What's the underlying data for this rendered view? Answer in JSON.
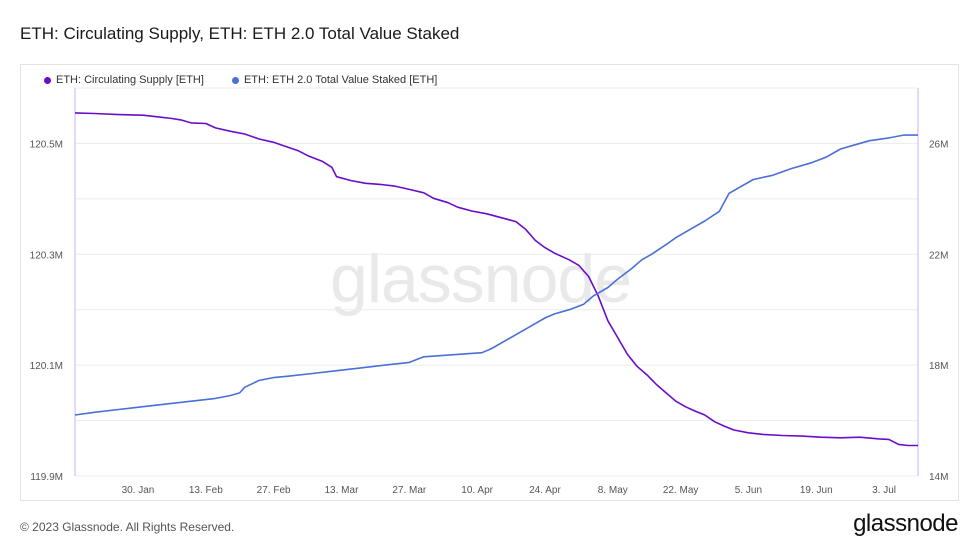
{
  "title": "ETH: Circulating Supply, ETH: ETH 2.0 Total Value Staked",
  "watermark": "glassnode",
  "footer": "© 2023 Glassnode. All Rights Reserved.",
  "brand": "glassnode",
  "colors": {
    "supply": "#6a0dc9",
    "staked": "#4a6fd6",
    "grid": "#ececec"
  },
  "chart_data": {
    "type": "line",
    "legend": [
      {
        "name": "ETH: Circulating Supply [ETH]",
        "color": "#6a0dc9"
      },
      {
        "name": "ETH: ETH 2.0 Total Value Staked [ETH]",
        "color": "#4a6fd6"
      }
    ],
    "xlabels": [
      "30. Jan",
      "13. Feb",
      "27. Feb",
      "13. Mar",
      "27. Mar",
      "10. Apr",
      "24. Apr",
      "8. May",
      "22. May",
      "5. Jun",
      "19. Jun",
      "3. Jul"
    ],
    "x_tick_days": [
      29,
      43,
      57,
      71,
      85,
      99,
      113,
      127,
      141,
      155,
      169,
      183
    ],
    "x_range_days": [
      16,
      190
    ],
    "left_axis": {
      "range": [
        119.9,
        120.6
      ],
      "ticks": [
        119.9,
        120.1,
        120.3,
        120.5
      ],
      "labels": [
        "119.9M",
        "120.1M",
        "120.3M",
        "120.5M"
      ]
    },
    "right_axis": {
      "range": [
        14,
        28
      ],
      "ticks": [
        14,
        18,
        22,
        26
      ],
      "labels": [
        "14M",
        "18M",
        "22M",
        "26M"
      ]
    },
    "series": [
      {
        "name": "ETH: Circulating Supply [ETH]",
        "axis": "left",
        "unit": "M ETH",
        "points": [
          [
            16,
            120.555
          ],
          [
            20,
            120.554
          ],
          [
            25,
            120.552
          ],
          [
            30,
            120.551
          ],
          [
            33,
            120.548
          ],
          [
            36,
            120.545
          ],
          [
            38,
            120.542
          ],
          [
            40,
            120.537
          ],
          [
            43,
            120.536
          ],
          [
            45,
            120.528
          ],
          [
            48,
            120.522
          ],
          [
            51,
            120.517
          ],
          [
            54,
            120.508
          ],
          [
            57,
            120.502
          ],
          [
            59,
            120.496
          ],
          [
            62,
            120.487
          ],
          [
            64,
            120.478
          ],
          [
            67,
            120.468
          ],
          [
            69,
            120.457
          ],
          [
            70,
            120.44
          ],
          [
            73,
            120.433
          ],
          [
            76,
            120.428
          ],
          [
            79,
            120.426
          ],
          [
            82,
            120.423
          ],
          [
            85,
            120.417
          ],
          [
            88,
            120.411
          ],
          [
            90,
            120.401
          ],
          [
            93,
            120.393
          ],
          [
            95,
            120.385
          ],
          [
            98,
            120.378
          ],
          [
            101,
            120.373
          ],
          [
            104,
            120.366
          ],
          [
            107,
            120.359
          ],
          [
            109,
            120.345
          ],
          [
            111,
            120.325
          ],
          [
            113,
            120.312
          ],
          [
            115,
            120.302
          ],
          [
            118,
            120.29
          ],
          [
            120,
            120.28
          ],
          [
            122,
            120.26
          ],
          [
            124,
            120.225
          ],
          [
            126,
            120.18
          ],
          [
            128,
            120.15
          ],
          [
            130,
            120.12
          ],
          [
            132,
            120.098
          ],
          [
            134,
            120.083
          ],
          [
            136,
            120.065
          ],
          [
            138,
            120.05
          ],
          [
            140,
            120.035
          ],
          [
            142,
            120.025
          ],
          [
            144,
            120.017
          ],
          [
            146,
            120.01
          ],
          [
            148,
            119.998
          ],
          [
            150,
            119.99
          ],
          [
            152,
            119.983
          ],
          [
            155,
            119.978
          ],
          [
            158,
            119.975
          ],
          [
            162,
            119.973
          ],
          [
            166,
            119.972
          ],
          [
            170,
            119.97
          ],
          [
            174,
            119.969
          ],
          [
            178,
            119.97
          ],
          [
            182,
            119.967
          ],
          [
            184,
            119.966
          ],
          [
            186,
            119.957
          ],
          [
            188,
            119.955
          ],
          [
            190,
            119.955
          ]
        ]
      },
      {
        "name": "ETH: ETH 2.0 Total Value Staked [ETH]",
        "axis": "right",
        "unit": "M ETH",
        "points": [
          [
            16,
            16.2
          ],
          [
            20,
            16.3
          ],
          [
            25,
            16.4
          ],
          [
            30,
            16.5
          ],
          [
            35,
            16.6
          ],
          [
            40,
            16.7
          ],
          [
            45,
            16.8
          ],
          [
            48,
            16.9
          ],
          [
            50,
            17.0
          ],
          [
            51,
            17.2
          ],
          [
            54,
            17.45
          ],
          [
            57,
            17.55
          ],
          [
            60,
            17.6
          ],
          [
            65,
            17.7
          ],
          [
            70,
            17.8
          ],
          [
            75,
            17.9
          ],
          [
            80,
            18.0
          ],
          [
            85,
            18.1
          ],
          [
            88,
            18.3
          ],
          [
            92,
            18.35
          ],
          [
            96,
            18.4
          ],
          [
            100,
            18.45
          ],
          [
            102,
            18.6
          ],
          [
            105,
            18.9
          ],
          [
            108,
            19.2
          ],
          [
            111,
            19.5
          ],
          [
            113,
            19.7
          ],
          [
            115,
            19.85
          ],
          [
            118,
            20.0
          ],
          [
            121,
            20.2
          ],
          [
            123,
            20.5
          ],
          [
            126,
            20.8
          ],
          [
            128,
            21.1
          ],
          [
            131,
            21.5
          ],
          [
            133,
            21.8
          ],
          [
            135,
            22.0
          ],
          [
            138,
            22.35
          ],
          [
            140,
            22.6
          ],
          [
            143,
            22.9
          ],
          [
            146,
            23.2
          ],
          [
            149,
            23.55
          ],
          [
            151,
            24.2
          ],
          [
            153,
            24.4
          ],
          [
            156,
            24.7
          ],
          [
            160,
            24.85
          ],
          [
            164,
            25.1
          ],
          [
            168,
            25.3
          ],
          [
            171,
            25.5
          ],
          [
            174,
            25.8
          ],
          [
            177,
            25.95
          ],
          [
            180,
            26.1
          ],
          [
            184,
            26.2
          ],
          [
            187,
            26.3
          ],
          [
            190,
            26.3
          ]
        ]
      }
    ]
  }
}
